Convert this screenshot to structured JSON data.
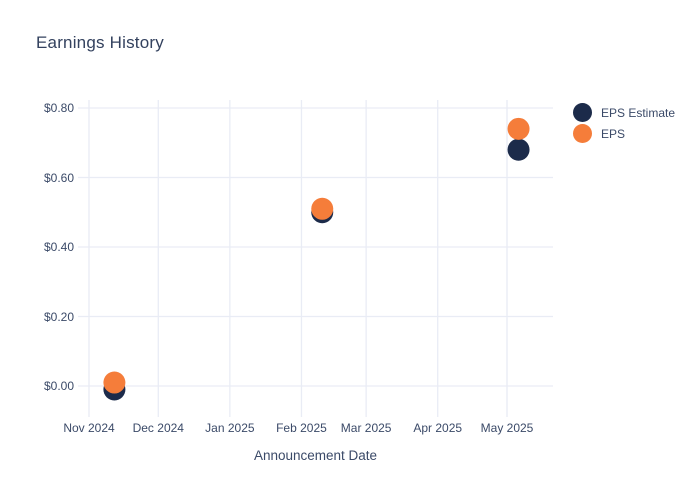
{
  "chart_data": {
    "type": "scatter",
    "title": "Earnings History",
    "xlabel": "Announcement Date",
    "ylabel": "",
    "x_tick_labels": [
      "Nov 2024",
      "Dec 2024",
      "Jan 2025",
      "Feb 2025",
      "Mar 2025",
      "Apr 2025",
      "May 2025"
    ],
    "y_tick_labels": [
      "$0.00",
      "$0.20",
      "$0.40",
      "$0.60",
      "$0.80"
    ],
    "y_tick_values": [
      0,
      0.2,
      0.4,
      0.6,
      0.8
    ],
    "ylim": [
      -0.09,
      0.82
    ],
    "x_range": [
      "Oct 27, 2024",
      "May 21, 2025"
    ],
    "grid": true,
    "legend_position": "right",
    "marker_diameter_px": 22,
    "series": [
      {
        "name": "EPS Estimate",
        "color": "#1c2b4a",
        "points": [
          {
            "x": "Nov 12, 2024",
            "y": -0.01
          },
          {
            "x": "Feb 10, 2025",
            "y": 0.5
          },
          {
            "x": "May 6, 2025",
            "y": 0.68
          }
        ]
      },
      {
        "name": "EPS",
        "color": "#f57d3a",
        "points": [
          {
            "x": "Nov 12, 2024",
            "y": 0.01
          },
          {
            "x": "Feb 10, 2025",
            "y": 0.51
          },
          {
            "x": "May 6, 2025",
            "y": 0.74
          }
        ]
      }
    ],
    "colors": {
      "background": "#ffffff",
      "gridline": "#e9ecf5",
      "title_text": "#33415e",
      "tick_text": "#3b4a68"
    }
  }
}
